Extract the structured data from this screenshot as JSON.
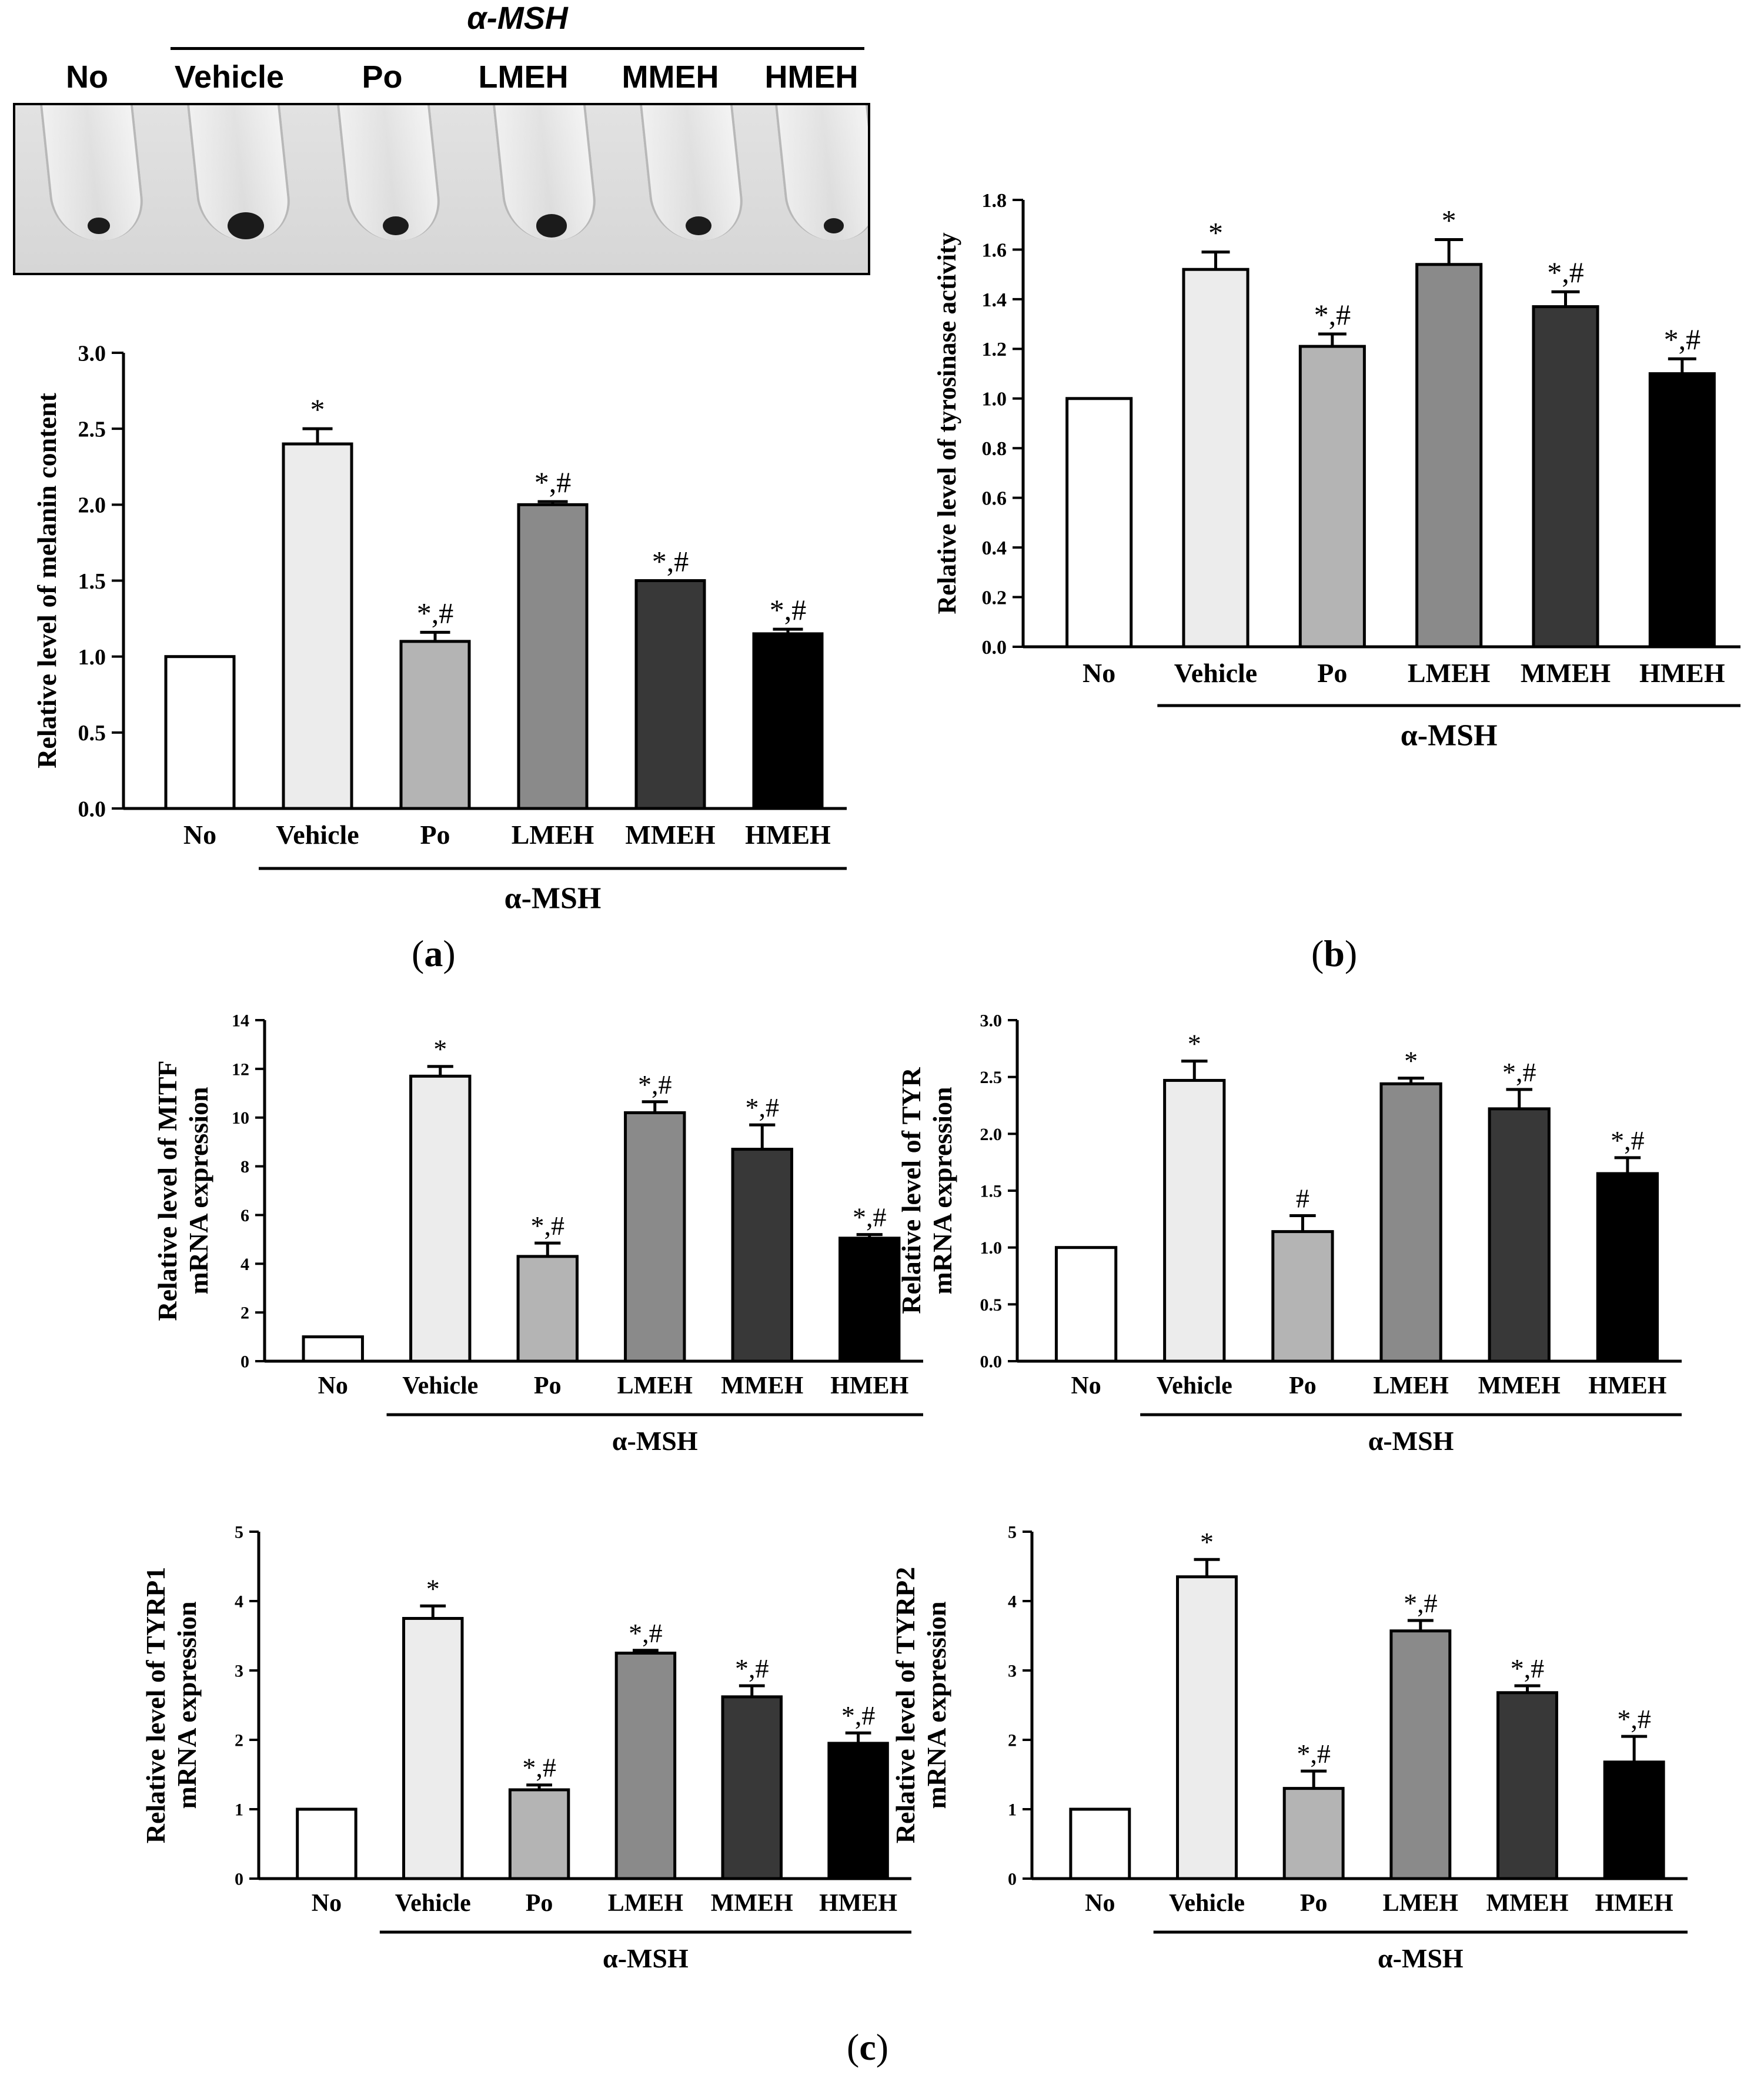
{
  "photo": {
    "header": "α-MSH",
    "labels": [
      "No",
      "Vehicle",
      "Po",
      "LMEH",
      "MMEH",
      "HMEH"
    ],
    "pellet_size": [
      0.6,
      1.0,
      0.7,
      0.85,
      0.7,
      0.55
    ]
  },
  "panels": {
    "a": "a",
    "b": "b",
    "c": "c"
  },
  "colors": {
    "No": "#ffffff",
    "Vehicle": "#ececec",
    "Po": "#b4b4b4",
    "LMEH": "#8a8a8a",
    "MMEH": "#383838",
    "HMEH": "#000000"
  },
  "chart_data": [
    {
      "id": "melanin",
      "type": "bar",
      "categories": [
        "No",
        "Vehicle",
        "Po",
        "LMEH",
        "MMEH",
        "HMEH"
      ],
      "values": [
        1.0,
        2.4,
        1.1,
        2.0,
        1.5,
        1.15
      ],
      "errors": [
        0.0,
        0.1,
        0.06,
        0.02,
        0.0,
        0.03
      ],
      "annotations": [
        "",
        "*",
        "*,#",
        "*,#",
        "*,#",
        "*,#"
      ],
      "ylabel": "Relative level of melanin content",
      "ylim": [
        0,
        3.0
      ],
      "yticks": [
        "0.0",
        "0.5",
        "1.0",
        "1.5",
        "2.0",
        "2.5",
        "3.0"
      ],
      "group_label": "α-MSH"
    },
    {
      "id": "tyrosinase",
      "type": "bar",
      "categories": [
        "No",
        "Vehicle",
        "Po",
        "LMEH",
        "MMEH",
        "HMEH"
      ],
      "values": [
        1.0,
        1.52,
        1.21,
        1.54,
        1.37,
        1.1
      ],
      "errors": [
        0.0,
        0.07,
        0.05,
        0.1,
        0.06,
        0.06
      ],
      "annotations": [
        "",
        "*",
        "*,#",
        "*",
        "*,#",
        "*,#"
      ],
      "ylabel": "Relative level of tyrosinase activity",
      "ylim": [
        0,
        1.8
      ],
      "yticks": [
        "0.0",
        "0.2",
        "0.4",
        "0.6",
        "0.8",
        "1.0",
        "1.2",
        "1.4",
        "1.6",
        "1.8"
      ],
      "group_label": "α-MSH"
    },
    {
      "id": "mitf",
      "type": "bar",
      "categories": [
        "No",
        "Vehicle",
        "Po",
        "LMEH",
        "MMEH",
        "HMEH"
      ],
      "values": [
        1.0,
        11.7,
        4.3,
        10.2,
        8.7,
        5.05
      ],
      "errors": [
        0.0,
        0.4,
        0.55,
        0.45,
        1.0,
        0.15
      ],
      "annotations": [
        "",
        "*",
        "*,#",
        "*,#",
        "*,#",
        "*,#"
      ],
      "ylabel": [
        "Relative level of MITF",
        "mRNA expression"
      ],
      "ylim": [
        0,
        14
      ],
      "yticks": [
        "0",
        "2",
        "4",
        "6",
        "8",
        "10",
        "12",
        "14"
      ],
      "group_label": "α-MSH"
    },
    {
      "id": "tyr",
      "type": "bar",
      "categories": [
        "No",
        "Vehicle",
        "Po",
        "LMEH",
        "MMEH",
        "HMEH"
      ],
      "values": [
        1.0,
        2.47,
        1.14,
        2.44,
        2.22,
        1.65
      ],
      "errors": [
        0.0,
        0.17,
        0.14,
        0.05,
        0.17,
        0.14
      ],
      "annotations": [
        "",
        "*",
        "#",
        "*",
        "*,#",
        "*,#"
      ],
      "ylabel": [
        "Relative level of TYR",
        "mRNA expression"
      ],
      "ylim": [
        0,
        3.0
      ],
      "yticks": [
        "0.0",
        "0.5",
        "1.0",
        "1.5",
        "2.0",
        "2.5",
        "3.0"
      ],
      "group_label": "α-MSH"
    },
    {
      "id": "tyrp1",
      "type": "bar",
      "categories": [
        "No",
        "Vehicle",
        "Po",
        "LMEH",
        "MMEH",
        "HMEH"
      ],
      "values": [
        1.0,
        3.75,
        1.28,
        3.25,
        2.62,
        1.95
      ],
      "errors": [
        0.0,
        0.18,
        0.07,
        0.04,
        0.16,
        0.15
      ],
      "annotations": [
        "",
        "*",
        "*,#",
        "*,#",
        "*,#",
        "*,#"
      ],
      "ylabel": [
        "Relative level of TYRP1",
        "mRNA expression"
      ],
      "ylim": [
        0,
        5
      ],
      "yticks": [
        "0",
        "1",
        "2",
        "3",
        "4",
        "5"
      ],
      "group_label": "α-MSH"
    },
    {
      "id": "tyrp2",
      "type": "bar",
      "categories": [
        "No",
        "Vehicle",
        "Po",
        "LMEH",
        "MMEH",
        "HMEH"
      ],
      "values": [
        1.0,
        4.35,
        1.3,
        3.57,
        2.68,
        1.68
      ],
      "errors": [
        0.0,
        0.25,
        0.25,
        0.15,
        0.1,
        0.37
      ],
      "annotations": [
        "",
        "*",
        "*,#",
        "*,#",
        "*,#",
        "*,#"
      ],
      "ylabel": [
        "Relative level of TYRP2",
        "mRNA expression"
      ],
      "ylim": [
        0,
        5
      ],
      "yticks": [
        "0",
        "1",
        "2",
        "3",
        "4",
        "5"
      ],
      "group_label": "α-MSH"
    }
  ]
}
